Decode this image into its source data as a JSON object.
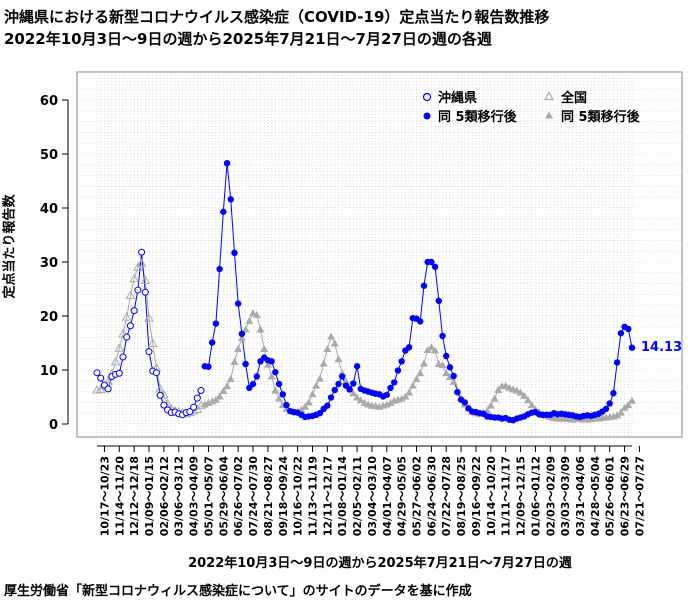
{
  "title_line1": "沖縄県における新型コロナウイルス感染症（COVID-19）定点当たり報告数推移",
  "title_line2": "2022年10月3日～9日の週から2025年7月21日～7月27日の週の各週",
  "source": "厚生労働省「新型コロナウィルス感染症について」のサイトのデータを基に作成",
  "colors": {
    "okinawa": "#0000ff",
    "national": "#aaaaaa",
    "grid": "#cccccc"
  },
  "chart_data": {
    "type": "line",
    "xlabel": "2022年10月3日～9日の週から2025年7月21日～7月27日の週",
    "ylabel": "定点当たり報告数",
    "ylim": [
      0,
      65
    ],
    "yticks": [
      0,
      10,
      20,
      30,
      40,
      50,
      60
    ],
    "grid": true,
    "legend_position": "top-right",
    "tick_labels": [
      "10/17～10/23",
      "11/14～11/20",
      "12/12～12/18",
      "01/09～01/15",
      "02/06～02/12",
      "03/06～03/12",
      "04/03～04/09",
      "05/01～05/07",
      "05/29～06/04",
      "06/26～07/02",
      "07/24～07/30",
      "08/21～08/27",
      "09/18～09/24",
      "10/16～10/22",
      "11/13～11/19",
      "12/11～12/17",
      "01/08～01/14",
      "02/05～02/11",
      "03/04～03/10",
      "04/01～04/07",
      "04/29～05/05",
      "05/27～06/02",
      "06/24～06/30",
      "07/22～07/28",
      "08/19～08/25",
      "09/16～09/22",
      "10/14～10/20",
      "11/11～11/17",
      "12/09～12/15",
      "01/06～01/12",
      "02/03～02/09",
      "03/03～03/09",
      "03/31～04/06",
      "04/28～05/04",
      "05/26～06/01",
      "06/23～06/29",
      "07/21～07/27"
    ],
    "last_value_label": "14.13",
    "series": [
      {
        "name": "沖縄県",
        "values": [
          9.5,
          8.5,
          7.2,
          6.5,
          8.8,
          9.2,
          9.4,
          12.4,
          16.1,
          18.2,
          21.0,
          24.8,
          31.8,
          24.4,
          13.4,
          9.8,
          9.5,
          5.3,
          3.5,
          2.6,
          2.1,
          2.2,
          1.9,
          1.7,
          2.1,
          2.3,
          3.1,
          4.8,
          6.2
        ]
      },
      {
        "name": "同 5類移行後",
        "values": [
          10.7,
          10.6,
          15.1,
          18.6,
          28.7,
          39.3,
          48.3,
          41.6,
          31.7,
          22.3,
          16.7,
          11.1,
          6.7,
          7.4,
          8.8,
          11.6,
          12.3,
          11.8,
          11.6,
          9.6,
          7.4,
          5.5,
          3.5,
          2.4,
          2.2,
          2.1,
          1.7,
          1.3,
          1.4,
          1.5,
          1.7,
          2.0,
          2.8,
          3.4,
          4.9,
          6.3,
          7.4,
          8.8,
          7.1,
          6.4,
          7.5,
          10.7,
          6.5,
          6.2,
          6.0,
          5.8,
          5.6,
          5.5,
          5.1,
          5.4,
          6.7,
          7.7,
          9.9,
          11.6,
          13.6,
          14.2,
          19.6,
          19.5,
          19.0,
          25.6,
          30.0,
          30.0,
          29.1,
          22.8,
          16.3,
          12.6,
          10.5,
          8.9,
          5.9,
          4.5,
          4.0,
          2.9,
          2.3,
          2.2,
          2.0,
          1.9,
          1.4,
          1.3,
          1.2,
          1.2,
          1.0,
          1.1,
          0.8,
          0.7,
          1.0,
          1.2,
          1.4,
          1.8,
          2.1,
          2.2,
          1.8,
          1.7,
          1.7,
          1.7,
          2.0,
          1.8,
          1.9,
          1.8,
          1.7,
          1.6,
          1.4,
          1.3,
          1.5,
          1.6,
          1.5,
          1.7,
          1.9,
          2.3,
          2.8,
          3.8,
          5.7,
          11.4,
          16.8,
          18.0,
          17.6,
          14.13
        ]
      },
      {
        "name": "全国",
        "values": [
          6.3,
          6.4,
          7.0,
          7.8,
          9.3,
          11.5,
          14.0,
          16.7,
          19.8,
          23.8,
          26.9,
          29.0,
          29.8,
          26.6,
          19.6,
          14.9,
          10.4,
          6.5,
          5.4,
          3.7,
          2.8,
          2.4,
          2.3,
          2.1,
          1.9,
          2.1,
          2.4,
          2.7,
          3.4
        ]
      },
      {
        "name": "同 5類移行後",
        "values": [
          3.6,
          3.9,
          4.2,
          4.5,
          5.1,
          6.1,
          7.0,
          8.3,
          11.5,
          13.9,
          15.9,
          17.5,
          19.1,
          20.5,
          20.2,
          17.5,
          13.9,
          11.0,
          8.8,
          6.2,
          4.7,
          3.5,
          2.8,
          2.4,
          2.2,
          2.3,
          2.6,
          3.2,
          4.0,
          5.5,
          7.1,
          8.4,
          11.2,
          13.9,
          16.2,
          14.9,
          12.0,
          9.4,
          7.9,
          6.6,
          5.7,
          4.9,
          4.4,
          3.9,
          3.6,
          3.4,
          3.3,
          3.2,
          3.4,
          3.6,
          3.9,
          4.3,
          4.5,
          4.7,
          5.1,
          5.8,
          7.1,
          8.3,
          9.4,
          11.2,
          13.7,
          14.2,
          13.6,
          11.1,
          10.9,
          9.4,
          8.7,
          7.8,
          6.2,
          4.8,
          3.6,
          2.9,
          2.3,
          2.0,
          1.9,
          2.0,
          2.5,
          3.4,
          4.7,
          6.3,
          7.0,
          7.1,
          6.7,
          6.4,
          6.2,
          5.8,
          5.2,
          4.4,
          3.5,
          2.7,
          2.2,
          1.7,
          1.5,
          1.3,
          1.1,
          1.0,
          1.0,
          1.0,
          0.9,
          0.8,
          0.9,
          1.0,
          0.8,
          0.8,
          0.9,
          1.0,
          1.0,
          1.1,
          1.2,
          1.3,
          1.4,
          1.6,
          2.1,
          3.0,
          3.5,
          4.3
        ]
      }
    ]
  }
}
